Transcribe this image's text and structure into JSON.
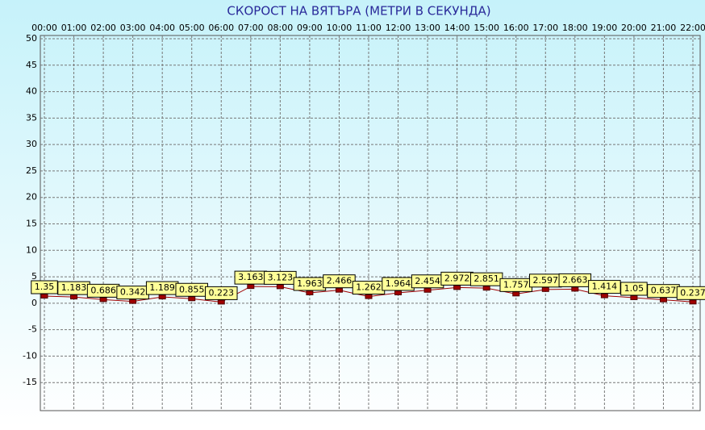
{
  "chart_data": {
    "type": "line",
    "title": "СКОРОСТ НА ВЯТЪРА (МЕТРИ В СЕКУНДА)",
    "categories": [
      "00:00",
      "01:00",
      "02:00",
      "03:00",
      "04:00",
      "05:00",
      "06:00",
      "07:00",
      "08:00",
      "09:00",
      "10:00",
      "11:00",
      "12:00",
      "13:00",
      "14:00",
      "15:00",
      "16:00",
      "17:00",
      "18:00",
      "19:00",
      "20:00",
      "21:00",
      "22:00"
    ],
    "values": [
      1.35,
      1.183,
      0.686,
      0.342,
      1.189,
      0.855,
      0.223,
      3.163,
      3.123,
      1.963,
      2.466,
      1.262,
      1.964,
      2.454,
      2.972,
      2.851,
      1.757,
      2.597,
      2.663,
      1.414,
      1.05,
      0.637,
      0.237
    ],
    "color": "#a00000",
    "ylim": [
      -20,
      50
    ],
    "yticks": [
      -15,
      -10,
      -5,
      0,
      5,
      10,
      15,
      20,
      25,
      30,
      35,
      40,
      45,
      50
    ],
    "grid": true
  }
}
